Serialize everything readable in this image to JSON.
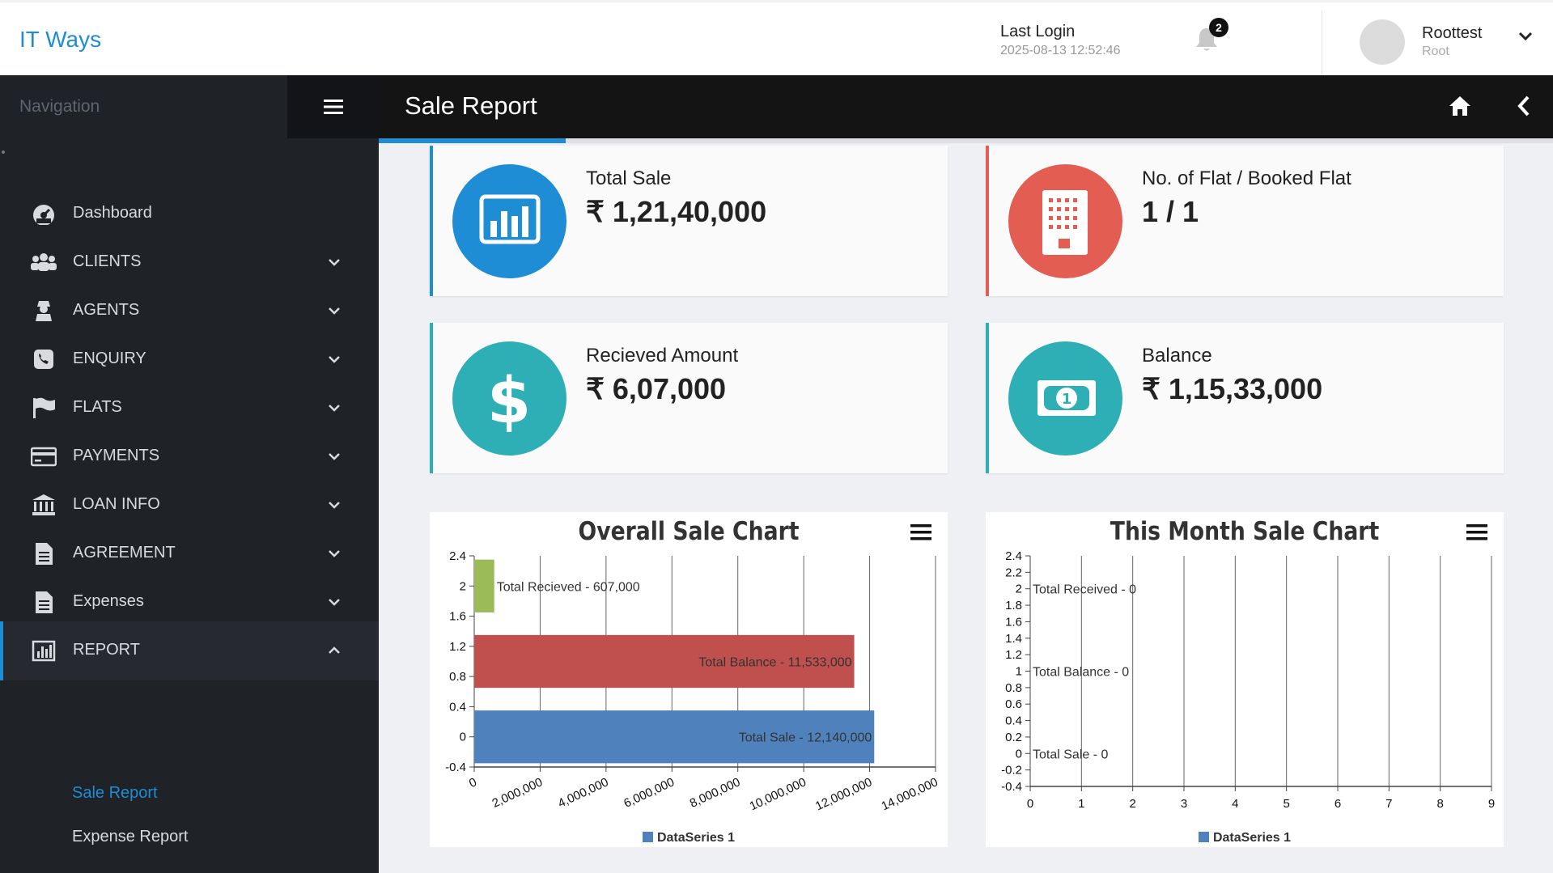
{
  "app": {
    "brand": "IT Ways"
  },
  "header": {
    "last_login_label": "Last Login",
    "last_login_time": "2025-08-13 12:52:46",
    "notification_count": "2",
    "user_name": "Roottest",
    "user_role": "Root"
  },
  "sidebar": {
    "title": "Navigation",
    "items": [
      {
        "label": "Dashboard",
        "icon": "dashboard-icon",
        "caret": ""
      },
      {
        "label": "CLIENTS",
        "icon": "users-icon",
        "caret": "down"
      },
      {
        "label": "AGENTS",
        "icon": "user-secret-icon",
        "caret": "down"
      },
      {
        "label": "ENQUIRY",
        "icon": "phone-icon",
        "caret": "down"
      },
      {
        "label": "FLATS",
        "icon": "flag-icon",
        "caret": "down"
      },
      {
        "label": "PAYMENTS",
        "icon": "credit-card-icon",
        "caret": "down"
      },
      {
        "label": "LOAN INFO",
        "icon": "bank-icon",
        "caret": "down"
      },
      {
        "label": "AGREEMENT",
        "icon": "document-icon",
        "caret": "down"
      },
      {
        "label": "Expenses",
        "icon": "document-icon",
        "caret": "down"
      },
      {
        "label": "REPORT",
        "icon": "bar-chart-icon",
        "caret": "up",
        "active": true
      }
    ],
    "sub_items": [
      {
        "label": "Sale Report",
        "active": true
      },
      {
        "label": "Expense Report",
        "active": false
      }
    ]
  },
  "page": {
    "title": "Sale Report"
  },
  "colors": {
    "accent": "#1f8dd6",
    "blue": "#1f8dd6",
    "red": "#e35d53",
    "teal": "#2eafb5",
    "bar_green": "#9bbb59",
    "bar_red": "#c0504d",
    "bar_blue": "#4f81bd"
  },
  "cards": [
    {
      "title": "Total Sale",
      "value": "₹ 1,21,40,000",
      "icon": "bar-chart-icon",
      "color": "#1f8dd6"
    },
    {
      "title": "No. of Flat / Booked Flat",
      "value": "1 / 1",
      "icon": "building-icon",
      "color": "#e35d53"
    },
    {
      "title": "Recieved Amount",
      "value": "₹ 6,07,000",
      "icon": "dollar-icon",
      "color": "#2eafb5"
    },
    {
      "title": "Balance",
      "value": "₹ 1,15,33,000",
      "icon": "money-bill-icon",
      "color": "#2eafb5"
    }
  ],
  "chart_data": [
    {
      "type": "bar",
      "orientation": "horizontal",
      "title": "Overall Sale Chart",
      "categories": [
        "Total Sale",
        "Total Balance",
        "Total Recieved"
      ],
      "series": [
        {
          "name": "DataSeries 1",
          "values": [
            12140000,
            11533000,
            607000
          ]
        }
      ],
      "data_labels": [
        "Total Sale - 12,140,000",
        "Total Balance - 11,533,000",
        "Total Recieved - 607,000"
      ],
      "bar_colors": [
        "#4f81bd",
        "#c0504d",
        "#9bbb59"
      ],
      "x_ticks": [
        "0",
        "2,000,000",
        "4,000,000",
        "6,000,000",
        "8,000,000",
        "10,000,000",
        "12,000,000",
        "14,000,000"
      ],
      "xlim": [
        0,
        14000000
      ],
      "y_ticks": [
        "2.4",
        "2",
        "1.6",
        "1.2",
        "0.8",
        "0.4",
        "0",
        "-0.4"
      ],
      "ylim": [
        -0.4,
        2.4
      ],
      "grid": "vertical",
      "legend": "bottom"
    },
    {
      "type": "bar",
      "orientation": "horizontal",
      "title": "This Month Sale Chart",
      "categories": [
        "Total Sale",
        "Total Balance",
        "Total Received"
      ],
      "series": [
        {
          "name": "DataSeries 1",
          "values": [
            0,
            0,
            0
          ]
        }
      ],
      "data_labels": [
        "Total Sale - 0",
        "Total Balance - 0",
        "Total Received - 0"
      ],
      "x_ticks": [
        "0",
        "1",
        "2",
        "3",
        "4",
        "5",
        "6",
        "7",
        "8",
        "9"
      ],
      "xlim": [
        0,
        9
      ],
      "y_ticks": [
        "2.4",
        "2.2",
        "2",
        "1.8",
        "1.6",
        "1.4",
        "1.2",
        "1",
        "0.8",
        "0.6",
        "0.4",
        "0.2",
        "0",
        "-0.2",
        "-0.4"
      ],
      "ylim": [
        -0.4,
        2.4
      ],
      "grid": "vertical",
      "legend": "bottom"
    }
  ]
}
